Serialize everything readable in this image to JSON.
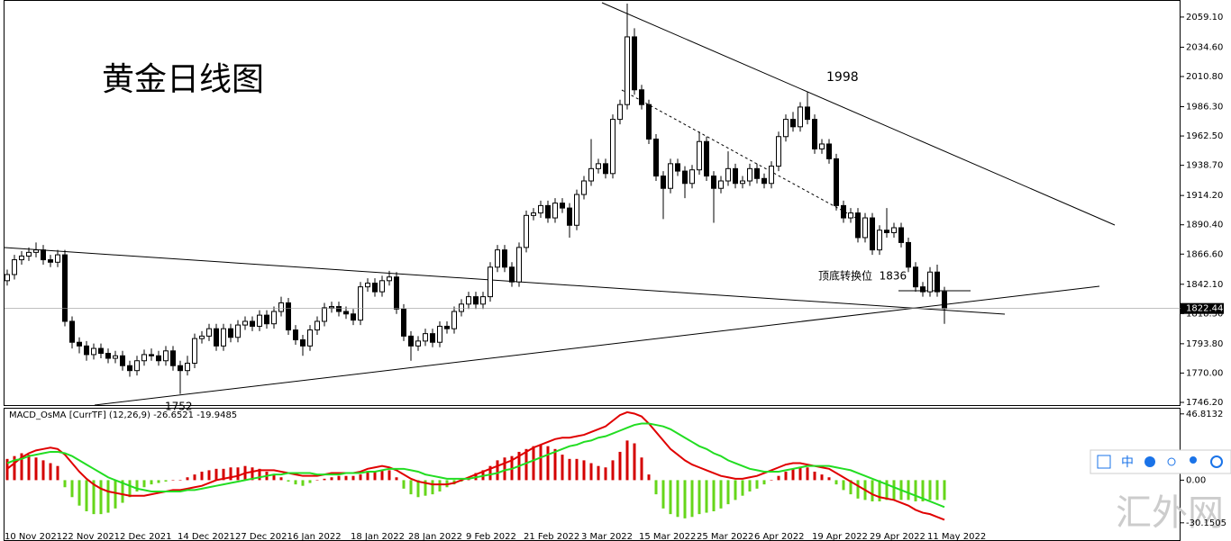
{
  "chart_data": [
    {
      "type": "candlestick",
      "title": "黄金日线图",
      "peak_label": "1998",
      "support_label": "顶底转换位  1836",
      "low_label": "1752",
      "up_color": "#ffffff",
      "down_color": "#000000",
      "ylim": [
        1744,
        2072.2
      ],
      "yticks": [
        {
          "value": 2059.1,
          "label": "2059.10"
        },
        {
          "value": 2034.6,
          "label": "2034.60"
        },
        {
          "value": 2010.8,
          "label": "2010.80"
        },
        {
          "value": 1986.3,
          "label": "1986.30"
        },
        {
          "value": 1962.5,
          "label": "1962.50"
        },
        {
          "value": 1938.7,
          "label": "1938.70"
        },
        {
          "value": 1914.2,
          "label": "1914.20"
        },
        {
          "value": 1890.4,
          "label": "1890.40"
        },
        {
          "value": 1866.6,
          "label": "1866.60"
        },
        {
          "value": 1842.1,
          "label": "1842.10"
        },
        {
          "value": 1818.3,
          "label": "1818.30"
        },
        {
          "value": 1793.8,
          "label": "1793.80"
        },
        {
          "value": 1770,
          "label": "1770.00"
        },
        {
          "value": 1746.2,
          "label": "1746.20"
        }
      ],
      "categories": [
        "10 Nov 2021",
        null,
        null,
        null,
        null,
        null,
        null,
        null,
        "22 Nov 2021",
        null,
        null,
        null,
        null,
        null,
        null,
        null,
        "2 Dec 2021",
        null,
        null,
        null,
        null,
        null,
        null,
        null,
        "14 Dec 2021",
        null,
        null,
        null,
        null,
        null,
        null,
        null,
        "27 Dec 2021",
        null,
        null,
        null,
        null,
        null,
        null,
        null,
        "6 Jan 2022",
        null,
        null,
        null,
        null,
        null,
        null,
        null,
        "18 Jan 2022",
        null,
        null,
        null,
        null,
        null,
        null,
        null,
        "28 Jan 2022",
        null,
        null,
        null,
        null,
        null,
        null,
        null,
        "9 Feb 2022",
        null,
        null,
        null,
        null,
        null,
        null,
        null,
        "21 Feb 2022",
        null,
        null,
        null,
        null,
        null,
        null,
        null,
        "3 Mar 2022",
        null,
        null,
        null,
        null,
        null,
        null,
        null,
        "15 Mar 2022",
        null,
        null,
        null,
        null,
        null,
        null,
        null,
        "25 Mar 2022",
        null,
        null,
        null,
        null,
        null,
        null,
        null,
        "6 Apr 2022",
        null,
        null,
        null,
        null,
        null,
        null,
        null,
        "19 Apr 2022",
        null,
        null,
        null,
        null,
        null,
        null,
        null,
        "29 Apr 2022",
        null,
        null,
        null,
        null,
        null,
        null,
        null,
        "11 May 2022",
        null,
        null
      ],
      "open": [
        1845,
        1850,
        1862,
        1865,
        1868,
        1870,
        1862,
        1860,
        1866,
        1812,
        1795,
        1792,
        1785,
        1790,
        1786,
        1782,
        1784,
        1776,
        1772,
        1780,
        1785,
        1784,
        1780,
        1788,
        1776,
        1772,
        1778,
        1798,
        1800,
        1806,
        1792,
        1806,
        1799,
        1809,
        1812,
        1808,
        1817,
        1810,
        1820,
        1827,
        1805,
        1797,
        1792,
        1805,
        1812,
        1823,
        1824,
        1820,
        1818,
        1813,
        1840,
        1843,
        1836,
        1845,
        1848,
        1822,
        1800,
        1792,
        1796,
        1802,
        1795,
        1808,
        1806,
        1820,
        1826,
        1832,
        1826,
        1832,
        1856,
        1870,
        1856,
        1844,
        1872,
        1898,
        1900,
        1906,
        1896,
        1908,
        1904,
        1890,
        1915,
        1926,
        1936,
        1940,
        1932,
        1976,
        1988,
        2043,
        2000,
        1988,
        1960,
        1930,
        1920,
        1940,
        1934,
        1924,
        1935,
        1958,
        1930,
        1920,
        1926,
        1936,
        1924,
        1926,
        1936,
        1928,
        1924,
        1938,
        1962,
        1976,
        1970,
        1986,
        1976,
        1952,
        1956,
        1944,
        1906,
        1896,
        1900,
        1880,
        1896,
        1870,
        1886,
        1884,
        1888,
        1876,
        1856,
        1840,
        1836,
        1852,
        1836
      ],
      "high": [
        1854,
        1866,
        1869,
        1872,
        1876,
        1874,
        1866,
        1870,
        1870,
        1816,
        1799,
        1796,
        1794,
        1794,
        1790,
        1788,
        1788,
        1780,
        1784,
        1789,
        1790,
        1788,
        1792,
        1792,
        1780,
        1784,
        1802,
        1804,
        1810,
        1810,
        1810,
        1810,
        1813,
        1816,
        1816,
        1821,
        1821,
        1824,
        1832,
        1831,
        1809,
        1801,
        1809,
        1816,
        1827,
        1828,
        1828,
        1824,
        1822,
        1844,
        1847,
        1847,
        1849,
        1853,
        1852,
        1826,
        1804,
        1800,
        1806,
        1806,
        1812,
        1812,
        1824,
        1830,
        1836,
        1836,
        1836,
        1860,
        1874,
        1874,
        1860,
        1876,
        1902,
        1904,
        1910,
        1910,
        1912,
        1912,
        1908,
        1919,
        1930,
        1960,
        1944,
        1944,
        1980,
        1992,
        2070,
        2050,
        2004,
        1992,
        1964,
        1934,
        1944,
        1944,
        1938,
        1939,
        1966,
        1962,
        1934,
        1930,
        1950,
        1940,
        1930,
        1940,
        1940,
        1932,
        1942,
        1966,
        1980,
        1982,
        1990,
        1998,
        1980,
        1960,
        1960,
        1948,
        1910,
        1904,
        1904,
        1900,
        1900,
        1890,
        1904,
        1892,
        1892,
        1880,
        1860,
        1844,
        1856,
        1858,
        1840
      ],
      "low": [
        1841,
        1846,
        1858,
        1861,
        1864,
        1858,
        1856,
        1856,
        1808,
        1790,
        1786,
        1780,
        1781,
        1782,
        1778,
        1778,
        1772,
        1767,
        1768,
        1776,
        1780,
        1776,
        1776,
        1772,
        1753,
        1768,
        1774,
        1794,
        1796,
        1788,
        1788,
        1795,
        1795,
        1805,
        1804,
        1804,
        1806,
        1806,
        1816,
        1801,
        1793,
        1784,
        1788,
        1801,
        1808,
        1819,
        1816,
        1814,
        1809,
        1809,
        1836,
        1832,
        1832,
        1841,
        1818,
        1796,
        1780,
        1788,
        1792,
        1791,
        1791,
        1802,
        1802,
        1816,
        1822,
        1822,
        1822,
        1828,
        1852,
        1852,
        1840,
        1840,
        1868,
        1894,
        1896,
        1892,
        1892,
        1900,
        1880,
        1886,
        1911,
        1922,
        1932,
        1928,
        1928,
        1972,
        1984,
        1996,
        1984,
        1956,
        1926,
        1895,
        1916,
        1930,
        1912,
        1920,
        1931,
        1926,
        1892,
        1916,
        1922,
        1920,
        1920,
        1922,
        1924,
        1920,
        1920,
        1934,
        1958,
        1966,
        1966,
        1972,
        1948,
        1948,
        1940,
        1902,
        1892,
        1892,
        1876,
        1876,
        1866,
        1866,
        1880,
        1880,
        1872,
        1852,
        1836,
        1832,
        1832,
        1832,
        1810
      ],
      "close": [
        1850,
        1862,
        1865,
        1868,
        1870,
        1862,
        1860,
        1866,
        1812,
        1795,
        1792,
        1785,
        1790,
        1786,
        1782,
        1784,
        1776,
        1772,
        1780,
        1785,
        1784,
        1780,
        1788,
        1776,
        1772,
        1778,
        1798,
        1800,
        1806,
        1792,
        1806,
        1799,
        1809,
        1812,
        1808,
        1817,
        1810,
        1820,
        1827,
        1805,
        1797,
        1792,
        1805,
        1812,
        1823,
        1824,
        1820,
        1818,
        1813,
        1840,
        1843,
        1836,
        1845,
        1848,
        1822,
        1800,
        1792,
        1796,
        1802,
        1795,
        1808,
        1806,
        1820,
        1826,
        1832,
        1826,
        1832,
        1856,
        1870,
        1856,
        1844,
        1872,
        1898,
        1900,
        1906,
        1896,
        1908,
        1904,
        1890,
        1915,
        1926,
        1936,
        1940,
        1932,
        1976,
        1988,
        2043,
        2000,
        1988,
        1960,
        1930,
        1920,
        1940,
        1934,
        1924,
        1935,
        1958,
        1930,
        1920,
        1926,
        1936,
        1924,
        1926,
        1936,
        1928,
        1924,
        1938,
        1962,
        1976,
        1970,
        1986,
        1976,
        1952,
        1956,
        1944,
        1906,
        1896,
        1900,
        1880,
        1896,
        1870,
        1886,
        1884,
        1888,
        1876,
        1856,
        1840,
        1836,
        1852,
        1836,
        1822.44
      ]
    },
    {
      "type": "macd",
      "title": "MACD_OsMA [CurrTF] (12,26,9) -26.6521 -19.9485",
      "ylim": [
        -36,
        50.5
      ],
      "yticks": [
        {
          "value": 46.8132,
          "label": "46.8132"
        },
        {
          "value": 0,
          "label": "0.00"
        },
        {
          "value": -30.1505,
          "label": "-30.1505"
        }
      ],
      "positive_color": "#d40000",
      "negative_color": "#66d61a",
      "series": [
        {
          "kind": "bar",
          "values": [
            15,
            17,
            19,
            18,
            16,
            14,
            12,
            10,
            -5,
            -12,
            -18,
            -22,
            -24,
            -24,
            -23,
            -20,
            -16,
            -12,
            -8,
            -5,
            -3,
            -2,
            -1,
            0,
            0,
            2,
            4,
            6,
            7,
            8,
            8,
            9,
            9,
            10,
            9,
            8,
            6,
            4,
            2,
            -1,
            -3,
            -4,
            -2,
            0,
            1,
            2,
            3,
            3,
            3,
            4,
            6,
            6,
            7,
            7,
            2,
            -6,
            -10,
            -12,
            -11,
            -10,
            -8,
            -5,
            -3,
            -1,
            2,
            5,
            7,
            10,
            14,
            16,
            17,
            20,
            22,
            24,
            25,
            24,
            22,
            18,
            15,
            15,
            14,
            12,
            10,
            9,
            14,
            20,
            28,
            26,
            16,
            4,
            -10,
            -20,
            -24,
            -26,
            -27,
            -26,
            -24,
            -23,
            -22,
            -20,
            -17,
            -14,
            -11,
            -8,
            -6,
            -3,
            0,
            3,
            6,
            8,
            9,
            9,
            6,
            4,
            2,
            -3,
            -7,
            -10,
            -13,
            -14,
            -15,
            -15,
            -14,
            -14,
            -14,
            -14,
            -15,
            -15,
            -14,
            -14,
            -14
          ]
        },
        {
          "kind": "line",
          "color": "#e00000",
          "values": [
            8,
            12,
            16,
            19,
            21,
            22,
            23,
            22,
            18,
            12,
            6,
            1,
            -3,
            -6,
            -8,
            -9,
            -10,
            -11,
            -11,
            -11,
            -10,
            -9,
            -8,
            -7,
            -7,
            -6,
            -5,
            -4,
            -2,
            0,
            1,
            2,
            3,
            5,
            6,
            7,
            7,
            7,
            6,
            5,
            4,
            3,
            3,
            3,
            4,
            5,
            5,
            5,
            5,
            6,
            8,
            9,
            10,
            9,
            7,
            4,
            1,
            -1,
            -2,
            -3,
            -3,
            -3,
            -2,
            0,
            2,
            4,
            6,
            8,
            10,
            12,
            14,
            17,
            20,
            23,
            25,
            27,
            29,
            30,
            30,
            31,
            32,
            34,
            36,
            38,
            42,
            46,
            48,
            47,
            45,
            40,
            34,
            28,
            22,
            18,
            14,
            11,
            9,
            7,
            5,
            3,
            2,
            1,
            1,
            2,
            3,
            5,
            7,
            9,
            11,
            12,
            12,
            11,
            10,
            9,
            8,
            5,
            2,
            -1,
            -4,
            -7,
            -10,
            -12,
            -13,
            -14,
            -16,
            -18,
            -21,
            -23,
            -24,
            -26,
            -28
          ]
        },
        {
          "kind": "line",
          "color": "#22dd22",
          "values": [
            12,
            14,
            15,
            17,
            18,
            19,
            20,
            20,
            19,
            17,
            14,
            11,
            8,
            5,
            2,
            0,
            -2,
            -4,
            -6,
            -7,
            -8,
            -8,
            -8,
            -8,
            -8,
            -7,
            -7,
            -6,
            -5,
            -4,
            -3,
            -2,
            -1,
            0,
            1,
            2,
            3,
            4,
            4,
            5,
            5,
            5,
            5,
            4,
            4,
            4,
            4,
            5,
            5,
            5,
            6,
            6,
            7,
            8,
            8,
            8,
            7,
            6,
            4,
            3,
            2,
            1,
            1,
            1,
            1,
            2,
            3,
            4,
            5,
            7,
            8,
            10,
            12,
            14,
            16,
            18,
            20,
            22,
            24,
            25,
            27,
            28,
            30,
            31,
            33,
            35,
            37,
            39,
            40,
            40,
            39,
            38,
            36,
            33,
            30,
            27,
            24,
            22,
            19,
            17,
            14,
            12,
            10,
            8,
            7,
            6,
            6,
            6,
            7,
            8,
            9,
            10,
            10,
            10,
            10,
            9,
            8,
            7,
            5,
            3,
            1,
            -1,
            -3,
            -5,
            -7,
            -9,
            -11,
            -13,
            -15,
            -17,
            -19
          ]
        }
      ]
    }
  ],
  "toolbar": {
    "lang": "中"
  },
  "watermark": "汇外网"
}
